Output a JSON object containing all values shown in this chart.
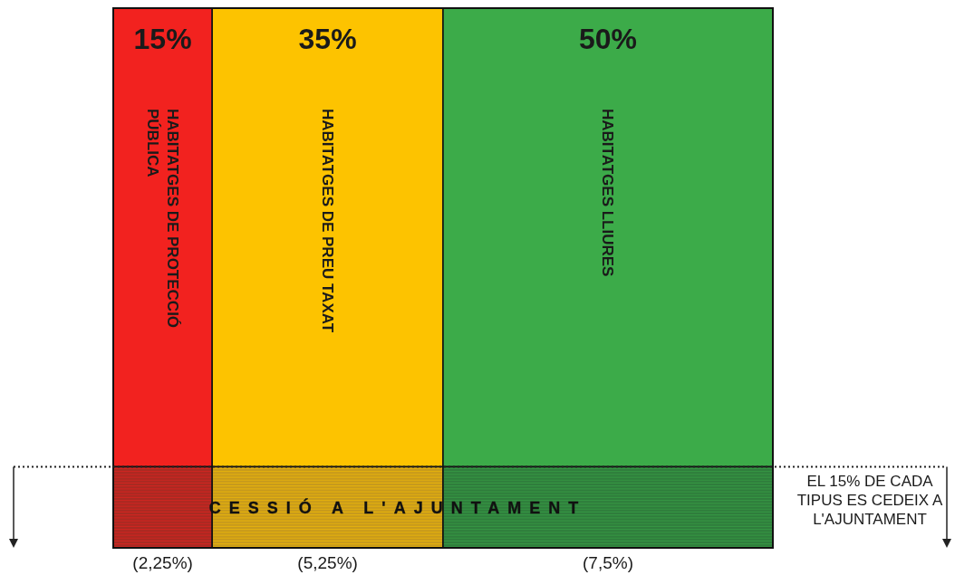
{
  "chart_data": {
    "type": "other",
    "categories": [
      "HABITATGES DE PROTECCIÓ PÚBLICA",
      "HABITATGES DE PREU TAXAT",
      "HABITATGES LLIURES"
    ],
    "series": [
      {
        "colors": [
          "#f2221f",
          "#fdc300",
          "#3cab49"
        ],
        "values": [
          15,
          35,
          50
        ],
        "value_labels": [
          "15%",
          "35%",
          "50%"
        ]
      },
      {
        "name": "CESSIÓ A L'AJUNTAMENT",
        "colors": [
          "#a82a22",
          "#c79a1c",
          "#2f7d3c"
        ],
        "values": [
          2.25,
          5.25,
          7.5
        ],
        "value_labels": [
          "(2,25%)",
          "(5,25%)",
          "(7,5%)"
        ]
      }
    ],
    "annotations": [
      "EL 15% DE CADA TIPUS ES CEDEIX A L'AJUNTAMENT"
    ],
    "legend": false
  }
}
